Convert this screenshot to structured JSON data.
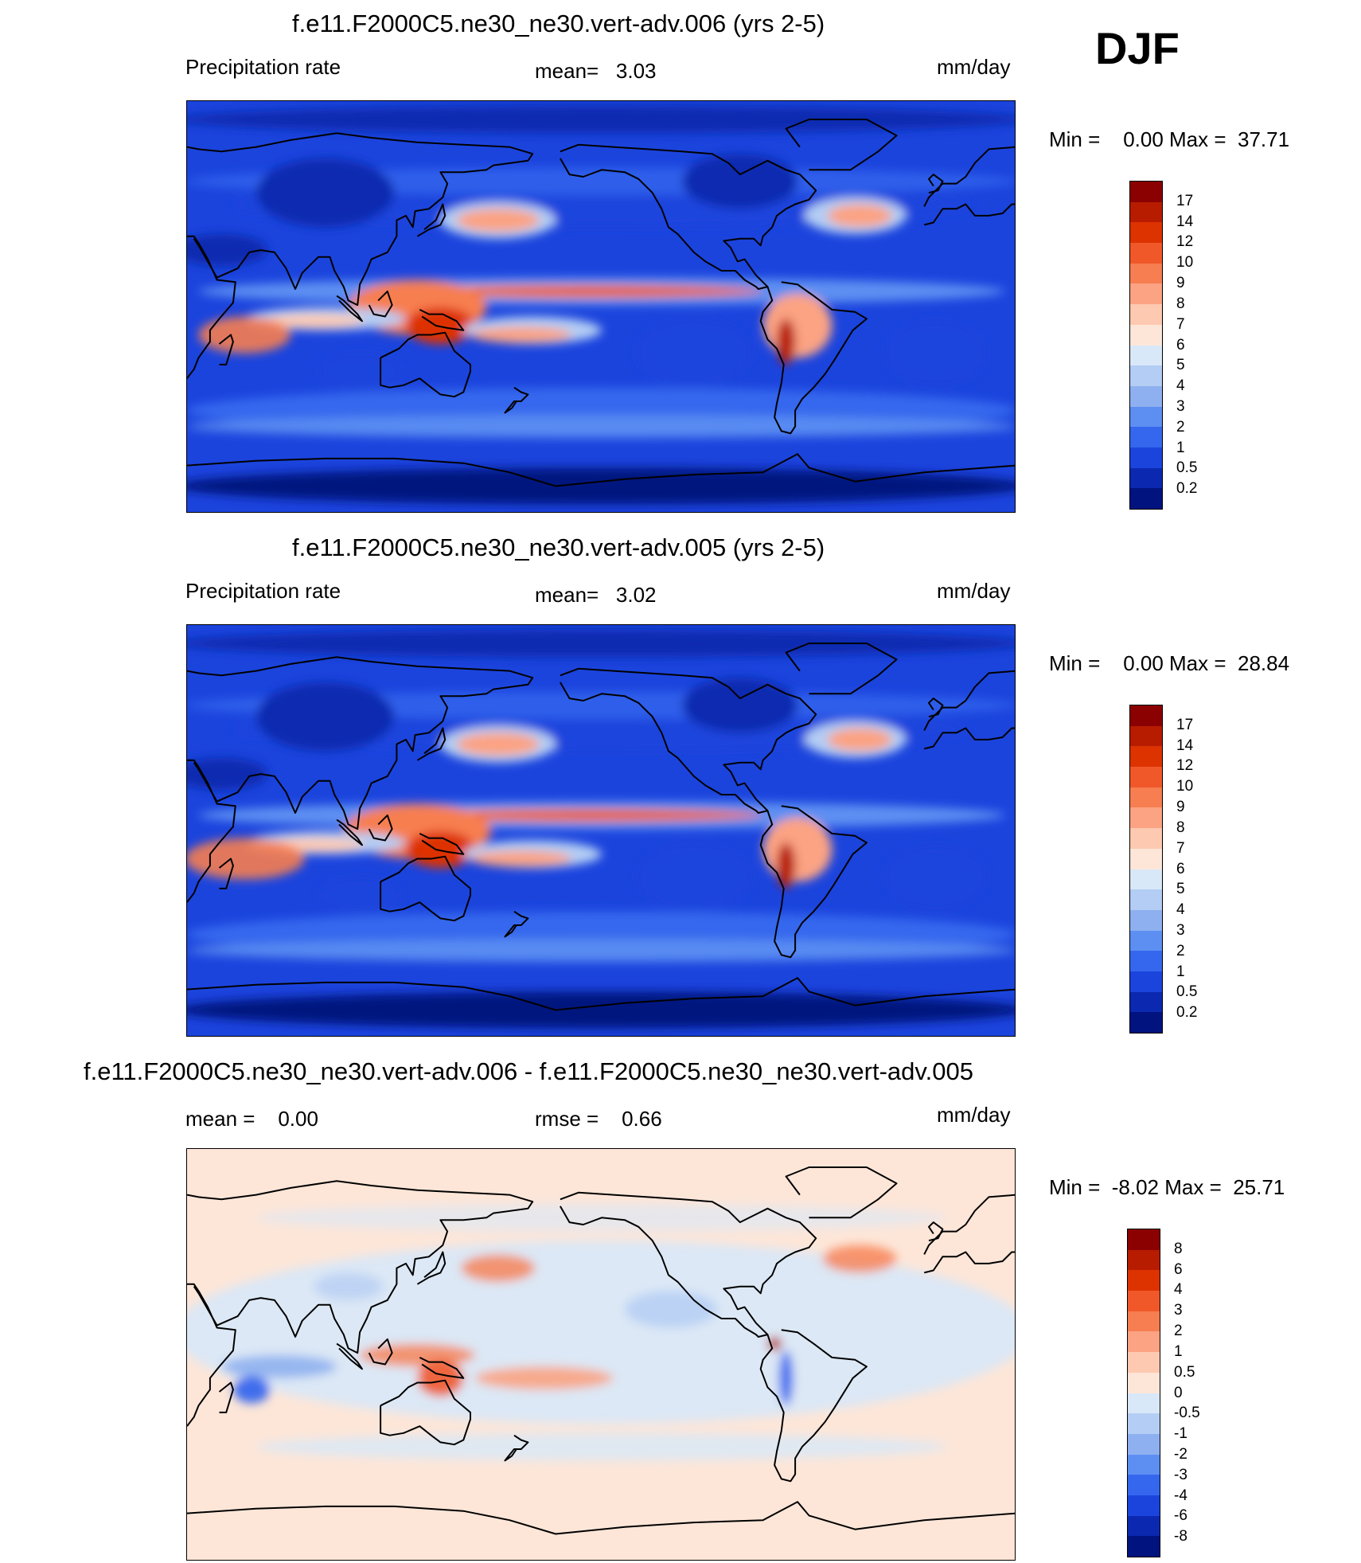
{
  "season": "DJF",
  "units": "mm/day",
  "panels": [
    {
      "title": "f.e11.F2000C5.ne30_ne30.vert-adv.006 (yrs 2-5)",
      "left_label": "Precipitation rate",
      "center_label": "mean=   3.03",
      "units": "mm/day",
      "minmax": "Min =    0.00 Max =  37.71"
    },
    {
      "title": "f.e11.F2000C5.ne30_ne30.vert-adv.005 (yrs 2-5)",
      "left_label": "Precipitation rate",
      "center_label": "mean=   3.02",
      "units": "mm/day",
      "minmax": "Min =    0.00 Max =  28.84"
    },
    {
      "title": "f.e11.F2000C5.ne30_ne30.vert-adv.006 - f.e11.F2000C5.ne30_ne30.vert-adv.005",
      "left_label": "mean =    0.00",
      "center_label": "rmse =    0.66",
      "units": "mm/day",
      "minmax": "Min =  -8.02 Max =  25.71"
    }
  ],
  "chart_data": [
    {
      "type": "heatmap",
      "title": "f.e11.F2000C5.ne30_ne30.vert-adv.006 (yrs 2-5)",
      "variable": "Precipitation rate",
      "units": "mm/day",
      "mean": 3.03,
      "min": 0.0,
      "max": 37.71,
      "colorbar_levels": [
        "17",
        "14",
        "12",
        "10",
        "9",
        "8",
        "7",
        "6",
        "5",
        "4",
        "3",
        "2",
        "1",
        "0.5",
        "0.2"
      ],
      "colorbar_colors": [
        "#8b0000",
        "#b81c00",
        "#dd3300",
        "#f0582a",
        "#f77e50",
        "#fba383",
        "#fdc9b0",
        "#fde6d8",
        "#d8e8f8",
        "#b3cdf4",
        "#8fb0f0",
        "#5d8ff2",
        "#3567ee",
        "#1b44dd",
        "#0b29b0",
        "#00137f"
      ]
    },
    {
      "type": "heatmap",
      "title": "f.e11.F2000C5.ne30_ne30.vert-adv.005 (yrs 2-5)",
      "variable": "Precipitation rate",
      "units": "mm/day",
      "mean": 3.02,
      "min": 0.0,
      "max": 28.84,
      "colorbar_levels": [
        "17",
        "14",
        "12",
        "10",
        "9",
        "8",
        "7",
        "6",
        "5",
        "4",
        "3",
        "2",
        "1",
        "0.5",
        "0.2"
      ],
      "colorbar_colors": [
        "#8b0000",
        "#b81c00",
        "#dd3300",
        "#f0582a",
        "#f77e50",
        "#fba383",
        "#fdc9b0",
        "#fde6d8",
        "#d8e8f8",
        "#b3cdf4",
        "#8fb0f0",
        "#5d8ff2",
        "#3567ee",
        "#1b44dd",
        "#0b29b0",
        "#00137f"
      ]
    },
    {
      "type": "heatmap",
      "title": "f.e11.F2000C5.ne30_ne30.vert-adv.006 - f.e11.F2000C5.ne30_ne30.vert-adv.005",
      "units": "mm/day",
      "mean": 0.0,
      "rmse": 0.66,
      "min": -8.02,
      "max": 25.71,
      "colorbar_levels": [
        "8",
        "6",
        "4",
        "3",
        "2",
        "1",
        "0.5",
        "0",
        "-0.5",
        "-1",
        "-2",
        "-3",
        "-4",
        "-6",
        "-8"
      ],
      "colorbar_colors": [
        "#8b0000",
        "#b81c00",
        "#dd3300",
        "#f0582a",
        "#f77e50",
        "#fba383",
        "#fdc9b0",
        "#fde6d8",
        "#d8e8f8",
        "#b3cdf4",
        "#8fb0f0",
        "#5d8ff2",
        "#3567ee",
        "#1b44dd",
        "#0b29b0",
        "#00137f"
      ]
    }
  ]
}
